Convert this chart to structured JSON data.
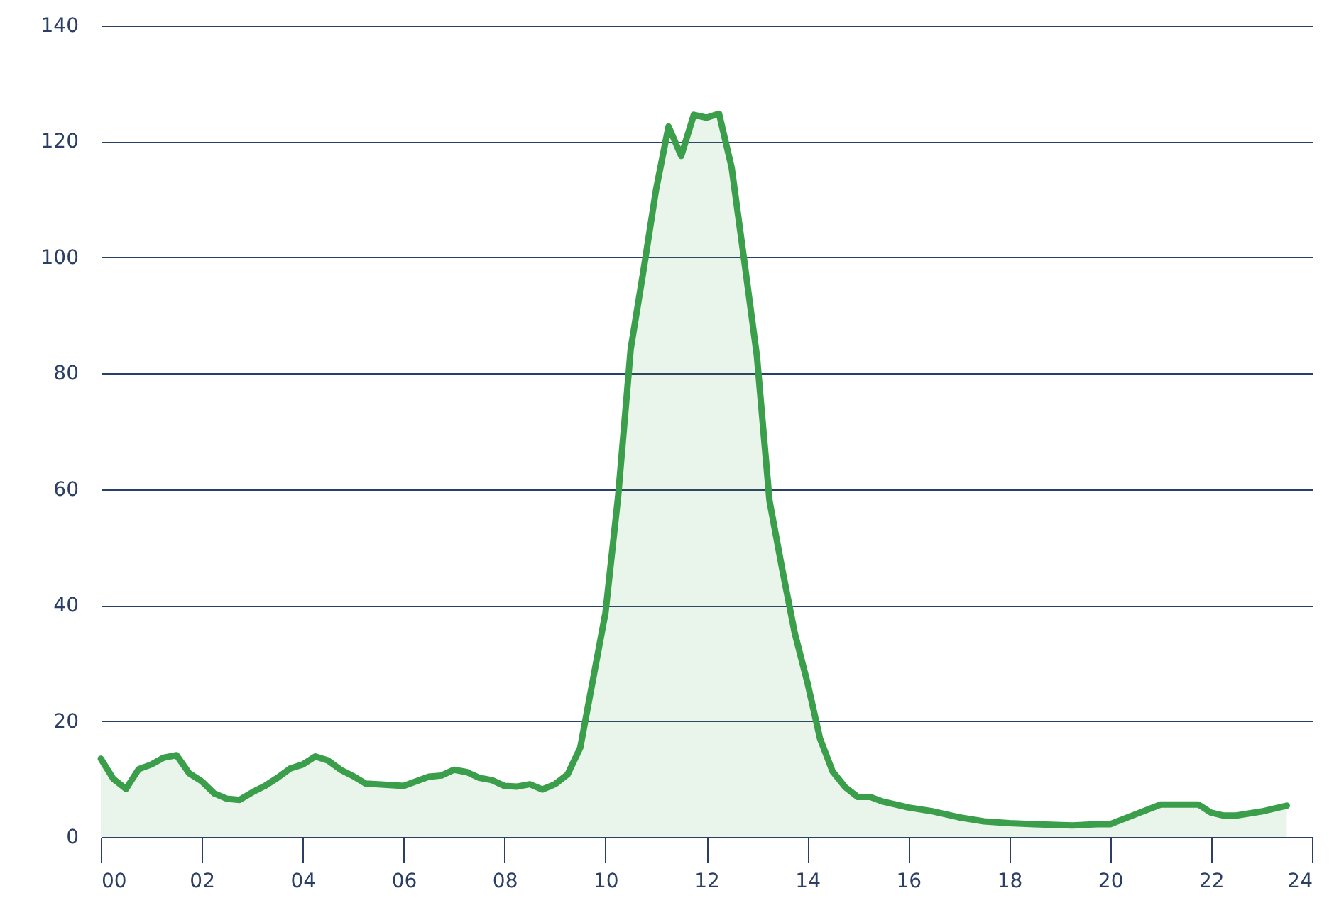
{
  "chart_data": {
    "type": "area",
    "x": [
      0,
      0.25,
      0.5,
      0.75,
      1,
      1.25,
      1.5,
      1.75,
      2,
      2.25,
      2.5,
      2.75,
      3,
      3.25,
      3.5,
      3.75,
      4,
      4.25,
      4.5,
      4.75,
      5,
      5.25,
      5.5,
      6,
      6.25,
      6.5,
      6.75,
      7,
      7.25,
      7.5,
      7.75,
      8,
      8.25,
      8.5,
      8.75,
      9,
      9.25,
      9.5,
      10,
      10.25,
      10.5,
      10.75,
      11,
      11.25,
      11.5,
      11.75,
      12,
      12.25,
      12.5,
      12.75,
      13,
      13.25,
      13.5,
      13.75,
      14,
      14.25,
      14.5,
      14.75,
      15,
      15.25,
      15.5,
      16,
      16.5,
      16.75,
      17,
      17.5,
      18,
      18.5,
      19.25,
      19.75,
      20,
      20.5,
      21,
      21.75,
      22,
      22.25,
      22.5,
      23,
      23.5
    ],
    "series": [
      {
        "color": "#3b9e4b",
        "values": [
          13.5,
          10,
          8.3,
          11.7,
          12.5,
          13.7,
          14.1,
          11,
          9.6,
          7.5,
          6.6,
          6.4,
          7.7,
          8.8,
          10.2,
          11.8,
          12.5,
          13.9,
          13.2,
          11.6,
          10.5,
          9.2,
          9.1,
          8.8,
          9.6,
          10.4,
          10.6,
          11.6,
          11.2,
          10.2,
          9.8,
          8.8,
          8.7,
          9.1,
          8.2,
          9.1,
          10.8,
          15.4,
          38.7,
          58.7,
          84.2,
          97.6,
          111.6,
          122.6,
          117.5,
          124.6,
          124.1,
          124.8,
          115.5,
          99.4,
          83,
          58,
          46.3,
          35.2,
          26.7,
          17,
          11.3,
          8.6,
          6.9,
          6.9,
          6.1,
          5.1,
          4.4,
          3.9,
          3.4,
          2.7,
          2.4,
          2.2,
          2,
          2.2,
          2.2,
          3.9,
          5.6,
          5.6,
          4.2,
          3.7,
          3.7,
          4.4,
          5.4
        ]
      }
    ],
    "xlim": [
      0,
      24
    ],
    "xticks": [
      {
        "value": 0,
        "label": "00"
      },
      {
        "value": 2,
        "label": "02"
      },
      {
        "value": 4,
        "label": "04"
      },
      {
        "value": 6,
        "label": "06"
      },
      {
        "value": 8,
        "label": "08"
      },
      10,
      12,
      14,
      16,
      18,
      20,
      22,
      24
    ],
    "ylim": [
      0,
      140
    ],
    "yticks": [
      0,
      20,
      40,
      60,
      80,
      100,
      120,
      140
    ],
    "grid": "y",
    "line_style": "solid",
    "marker": "none"
  }
}
